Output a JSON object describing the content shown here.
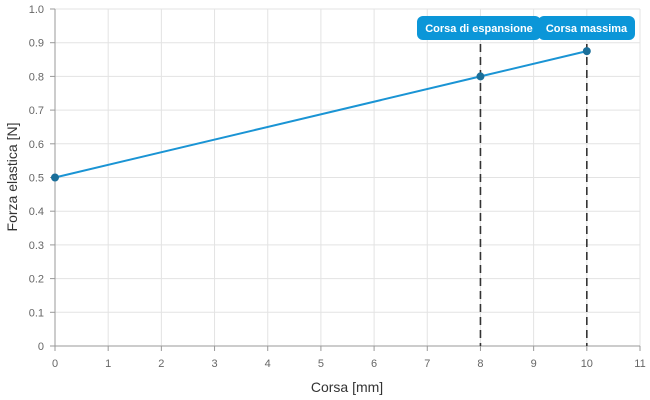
{
  "chart_data": {
    "type": "line",
    "xlabel": "Corsa [mm]",
    "ylabel": "Forza elastica [N]",
    "xlim": [
      0,
      11
    ],
    "ylim": [
      0,
      1.0
    ],
    "x_ticks": [
      0,
      1,
      2,
      3,
      4,
      5,
      6,
      7,
      8,
      9,
      10,
      11
    ],
    "y_ticks": [
      "0",
      "0.1",
      "0.2",
      "0.3",
      "0.4",
      "0.5",
      "0.6",
      "0.7",
      "0.8",
      "0.9",
      "1.0"
    ],
    "grid": true,
    "series": [
      {
        "color": "#1a94d4",
        "points": [
          {
            "x": 0,
            "y": 0.5
          },
          {
            "x": 8,
            "y": 0.8
          },
          {
            "x": 10,
            "y": 0.875
          }
        ]
      }
    ],
    "annotations": [
      {
        "label": "Corsa di espansione",
        "x": 8,
        "line_style": "dashed"
      },
      {
        "label": "Corsa massima",
        "x": 10,
        "line_style": "dashed"
      }
    ],
    "colors": {
      "line": "#1a94d4",
      "marker": "#1a6f9a",
      "callout": "#0b96d8",
      "grid": "#e3e3e3",
      "axis": "#999999",
      "reference_line": "#333333"
    }
  }
}
